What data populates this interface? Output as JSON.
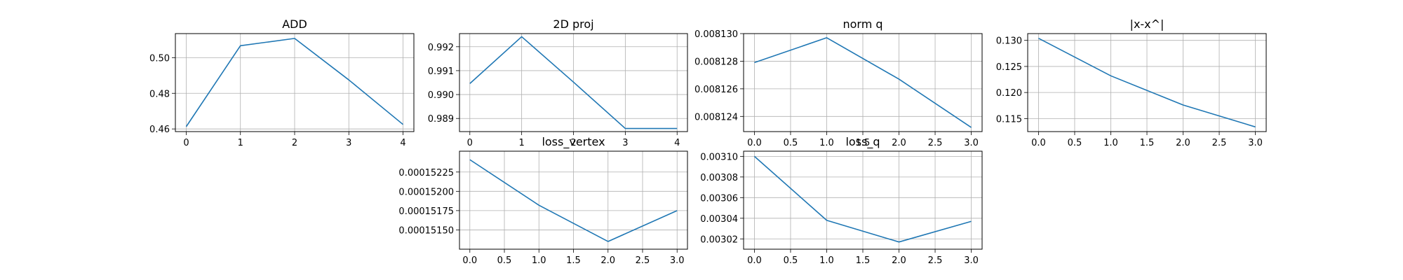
{
  "line_color": "#1f77b4",
  "chart_data": [
    {
      "type": "line",
      "title": "ADD",
      "x": [
        0,
        1,
        2,
        3,
        4
      ],
      "series": [
        {
          "values": [
            0.4613,
            0.5067,
            0.5108,
            0.4875,
            0.4625
          ]
        }
      ],
      "xlim": [
        -0.2,
        4.2
      ],
      "ylim": [
        0.4585,
        0.5135
      ],
      "xticks": [
        0,
        1,
        2,
        3,
        4
      ],
      "xtick_labels": [
        "0",
        "1",
        "2",
        "3",
        "4"
      ],
      "yticks": [
        0.46,
        0.48,
        0.5
      ],
      "ytick_labels": [
        "0.46",
        "0.48",
        "0.50"
      ],
      "grid": true
    },
    {
      "type": "line",
      "title": "2D proj",
      "x": [
        0,
        1,
        2,
        3,
        4
      ],
      "series": [
        {
          "values": [
            0.99046,
            0.99242,
            0.99052,
            0.98858,
            0.98858
          ]
        }
      ],
      "xlim": [
        -0.2,
        4.2
      ],
      "ylim": [
        0.98845,
        0.99255
      ],
      "xticks": [
        0,
        1,
        2,
        3,
        4
      ],
      "xtick_labels": [
        "0",
        "1",
        "2",
        "3",
        "4"
      ],
      "yticks": [
        0.989,
        0.99,
        0.991,
        0.992
      ],
      "ytick_labels": [
        "0.989",
        "0.990",
        "0.991",
        "0.992"
      ],
      "grid": true
    },
    {
      "type": "line",
      "title": "norm q",
      "x": [
        0,
        1,
        2,
        3
      ],
      "series": [
        {
          "values": [
            0.0081279,
            0.0081297,
            0.0081267,
            0.0081232
          ]
        }
      ],
      "xlim": [
        -0.15,
        3.15
      ],
      "ylim": [
        0.0081229,
        0.00813
      ],
      "xticks": [
        0,
        0.5,
        1.0,
        1.5,
        2.0,
        2.5,
        3.0
      ],
      "xtick_labels": [
        "0.0",
        "0.5",
        "1.0",
        "1.5",
        "2.0",
        "2.5",
        "3.0"
      ],
      "yticks": [
        0.008124,
        0.008126,
        0.008128,
        0.00813
      ],
      "ytick_labels": [
        "0.008124",
        "0.008126",
        "0.008128",
        "0.008130"
      ],
      "grid": true
    },
    {
      "type": "line",
      "title": "|x-x^|",
      "x": [
        0,
        1,
        2,
        3
      ],
      "series": [
        {
          "values": [
            0.1304,
            0.1232,
            0.1176,
            0.1134
          ]
        }
      ],
      "xlim": [
        -0.15,
        3.15
      ],
      "ylim": [
        0.1125,
        0.1313
      ],
      "xticks": [
        0,
        0.5,
        1.0,
        1.5,
        2.0,
        2.5,
        3.0
      ],
      "xtick_labels": [
        "0.0",
        "0.5",
        "1.0",
        "1.5",
        "2.0",
        "2.5",
        "3.0"
      ],
      "yticks": [
        0.115,
        0.12,
        0.125,
        0.13
      ],
      "ytick_labels": [
        "0.115",
        "0.120",
        "0.125",
        "0.130"
      ],
      "grid": true
    },
    {
      "type": "line",
      "title": "loss_vertex",
      "x": [
        0,
        1,
        2,
        3
      ],
      "series": [
        {
          "values": [
            0.00015241,
            0.00015182,
            0.00015135,
            0.00015175
          ]
        }
      ],
      "xlim": [
        -0.15,
        3.15
      ],
      "ylim": [
        0.00015125,
        0.00015252
      ],
      "xticks": [
        0,
        0.5,
        1.0,
        1.5,
        2.0,
        2.5,
        3.0
      ],
      "xtick_labels": [
        "0.0",
        "0.5",
        "1.0",
        "1.5",
        "2.0",
        "2.5",
        "3.0"
      ],
      "yticks": [
        0.0001515,
        0.00015175,
        0.000152,
        0.00015225
      ],
      "ytick_labels": [
        "0.00015150",
        "0.00015175",
        "0.00015200",
        "0.00015225"
      ],
      "grid": true
    },
    {
      "type": "line",
      "title": "loss_q",
      "x": [
        0,
        1,
        2,
        3
      ],
      "series": [
        {
          "values": [
            0.0031,
            0.003038,
            0.003017,
            0.003037
          ]
        }
      ],
      "xlim": [
        -0.15,
        3.15
      ],
      "ylim": [
        0.00301,
        0.003105
      ],
      "xticks": [
        0,
        0.5,
        1.0,
        1.5,
        2.0,
        2.5,
        3.0
      ],
      "xtick_labels": [
        "0.0",
        "0.5",
        "1.0",
        "1.5",
        "2.0",
        "2.5",
        "3.0"
      ],
      "yticks": [
        0.00302,
        0.00304,
        0.00306,
        0.00308,
        0.0031
      ],
      "ytick_labels": [
        "0.00302",
        "0.00304",
        "0.00306",
        "0.00308",
        "0.00310"
      ],
      "grid": true
    }
  ]
}
